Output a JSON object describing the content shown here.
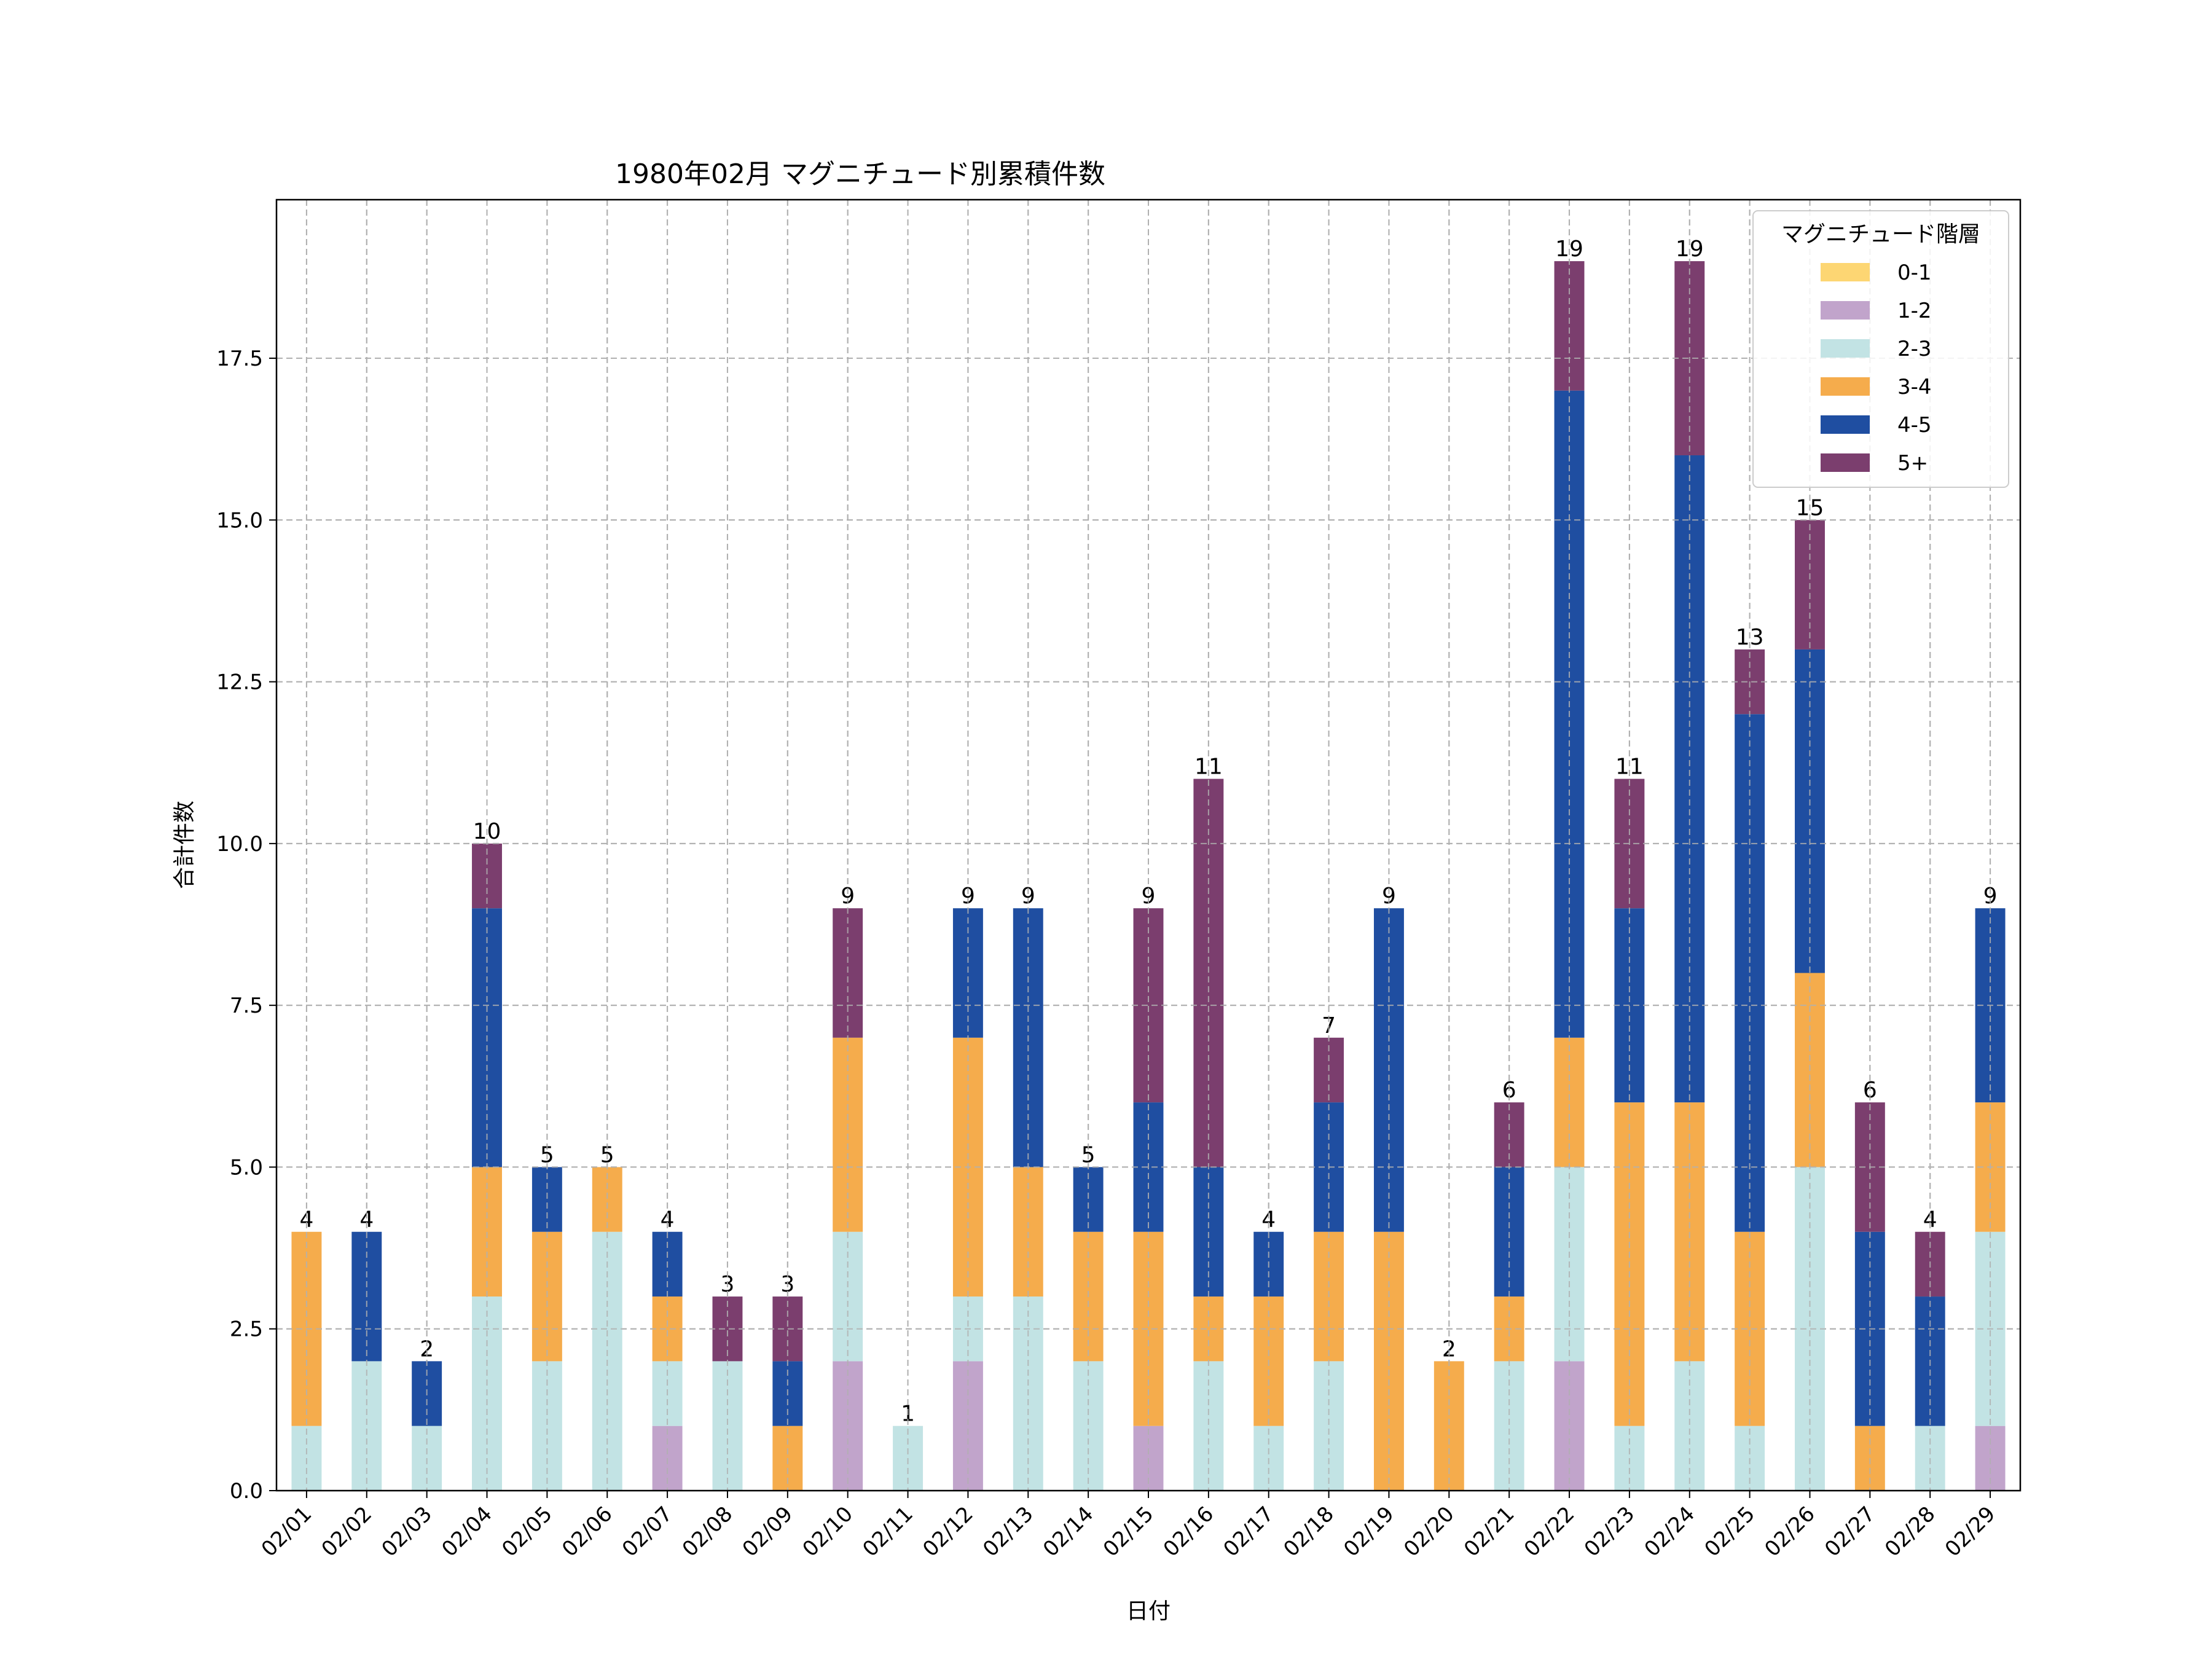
{
  "chart_data": {
    "type": "bar",
    "stacked": true,
    "title": "1980年02月 マグニチュード別累積件数",
    "xlabel": "日付",
    "ylabel": "合計件数",
    "ylim": [
      0,
      19.95
    ],
    "yticks": [
      "0.0",
      "2.5",
      "5.0",
      "7.5",
      "10.0",
      "12.5",
      "15.0",
      "17.5"
    ],
    "grid": true,
    "legend": {
      "title": "マグニチュード階層",
      "placement": "top-right"
    },
    "categories": [
      "02/01",
      "02/02",
      "02/03",
      "02/04",
      "02/05",
      "02/06",
      "02/07",
      "02/08",
      "02/09",
      "02/10",
      "02/11",
      "02/12",
      "02/13",
      "02/14",
      "02/15",
      "02/16",
      "02/17",
      "02/18",
      "02/19",
      "02/20",
      "02/21",
      "02/22",
      "02/23",
      "02/24",
      "02/25",
      "02/26",
      "02/27",
      "02/28",
      "02/29"
    ],
    "series": [
      {
        "name": "0-1",
        "color": "#fdd673",
        "values": [
          0,
          0,
          0,
          0,
          0,
          0,
          0,
          0,
          0,
          0,
          0,
          0,
          0,
          0,
          0,
          0,
          0,
          0,
          0,
          0,
          0,
          0,
          0,
          0,
          0,
          0,
          0,
          0,
          0
        ]
      },
      {
        "name": "1-2",
        "color": "#c1a4cb",
        "values": [
          0,
          0,
          0,
          0,
          0,
          0,
          1,
          0,
          0,
          2,
          0,
          2,
          0,
          0,
          1,
          0,
          0,
          0,
          0,
          0,
          0,
          2,
          0,
          0,
          0,
          0,
          0,
          0,
          1
        ]
      },
      {
        "name": "2-3",
        "color": "#c2e3e4",
        "values": [
          1,
          2,
          1,
          3,
          2,
          4,
          1,
          2,
          0,
          2,
          1,
          1,
          3,
          2,
          0,
          2,
          1,
          2,
          0,
          0,
          2,
          3,
          1,
          2,
          1,
          5,
          0,
          1,
          3
        ]
      },
      {
        "name": "3-4",
        "color": "#f5ac4c",
        "values": [
          3,
          0,
          0,
          2,
          2,
          1,
          1,
          0,
          1,
          3,
          0,
          4,
          2,
          2,
          3,
          1,
          2,
          2,
          4,
          2,
          1,
          2,
          5,
          4,
          3,
          3,
          1,
          0,
          2
        ]
      },
      {
        "name": "4-5",
        "color": "#1f4ea1",
        "values": [
          0,
          2,
          1,
          4,
          1,
          0,
          1,
          0,
          1,
          0,
          0,
          2,
          4,
          1,
          2,
          2,
          1,
          2,
          5,
          0,
          2,
          10,
          3,
          10,
          8,
          5,
          3,
          2,
          3
        ]
      },
      {
        "name": "5+",
        "color": "#7b3e6e",
        "values": [
          0,
          0,
          0,
          1,
          0,
          0,
          0,
          1,
          1,
          2,
          0,
          0,
          0,
          0,
          3,
          6,
          0,
          1,
          0,
          0,
          1,
          2,
          2,
          3,
          1,
          2,
          2,
          1,
          0
        ]
      }
    ],
    "totals": [
      "4",
      "4",
      "2",
      "10",
      "5",
      "5",
      "4",
      "3",
      "3",
      "9",
      "1",
      "9",
      "9",
      "5",
      "9",
      "11",
      "4",
      "7",
      "9",
      "2",
      "6",
      "19",
      "11",
      "19",
      "13",
      "15",
      "6",
      "4",
      "9"
    ]
  }
}
